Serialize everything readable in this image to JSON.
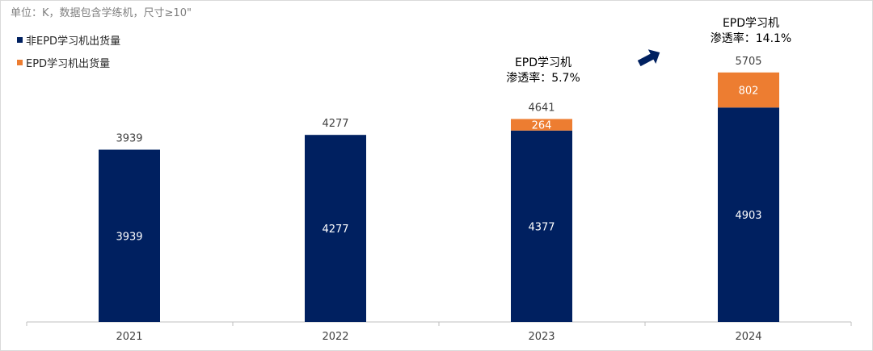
{
  "note": "单位：K，数据包含学练机，尺寸≥10\"",
  "chart_data": {
    "type": "bar",
    "stacked": true,
    "categories": [
      "2021",
      "2022",
      "2023",
      "2024"
    ],
    "series": [
      {
        "name": "非EPD学习机出货量",
        "values": [
          3939,
          4277,
          4377,
          4903
        ],
        "color": "#002060"
      },
      {
        "name": "EPD学习机出货量",
        "values": [
          null,
          null,
          264,
          802
        ],
        "color": "#ED7D31"
      }
    ],
    "totals": [
      3939,
      4277,
      4641,
      5705
    ],
    "ylim": [
      0,
      6000
    ],
    "legend_position": "top-left",
    "grid": false,
    "annotations": [
      {
        "category": "2023",
        "line1": "EPD学习机",
        "line2": "渗透率：5.7%"
      },
      {
        "category": "2024",
        "line1": "EPD学习机",
        "line2": "渗透率：14.1%"
      }
    ],
    "trend_arrow": "up-right-arrow"
  }
}
